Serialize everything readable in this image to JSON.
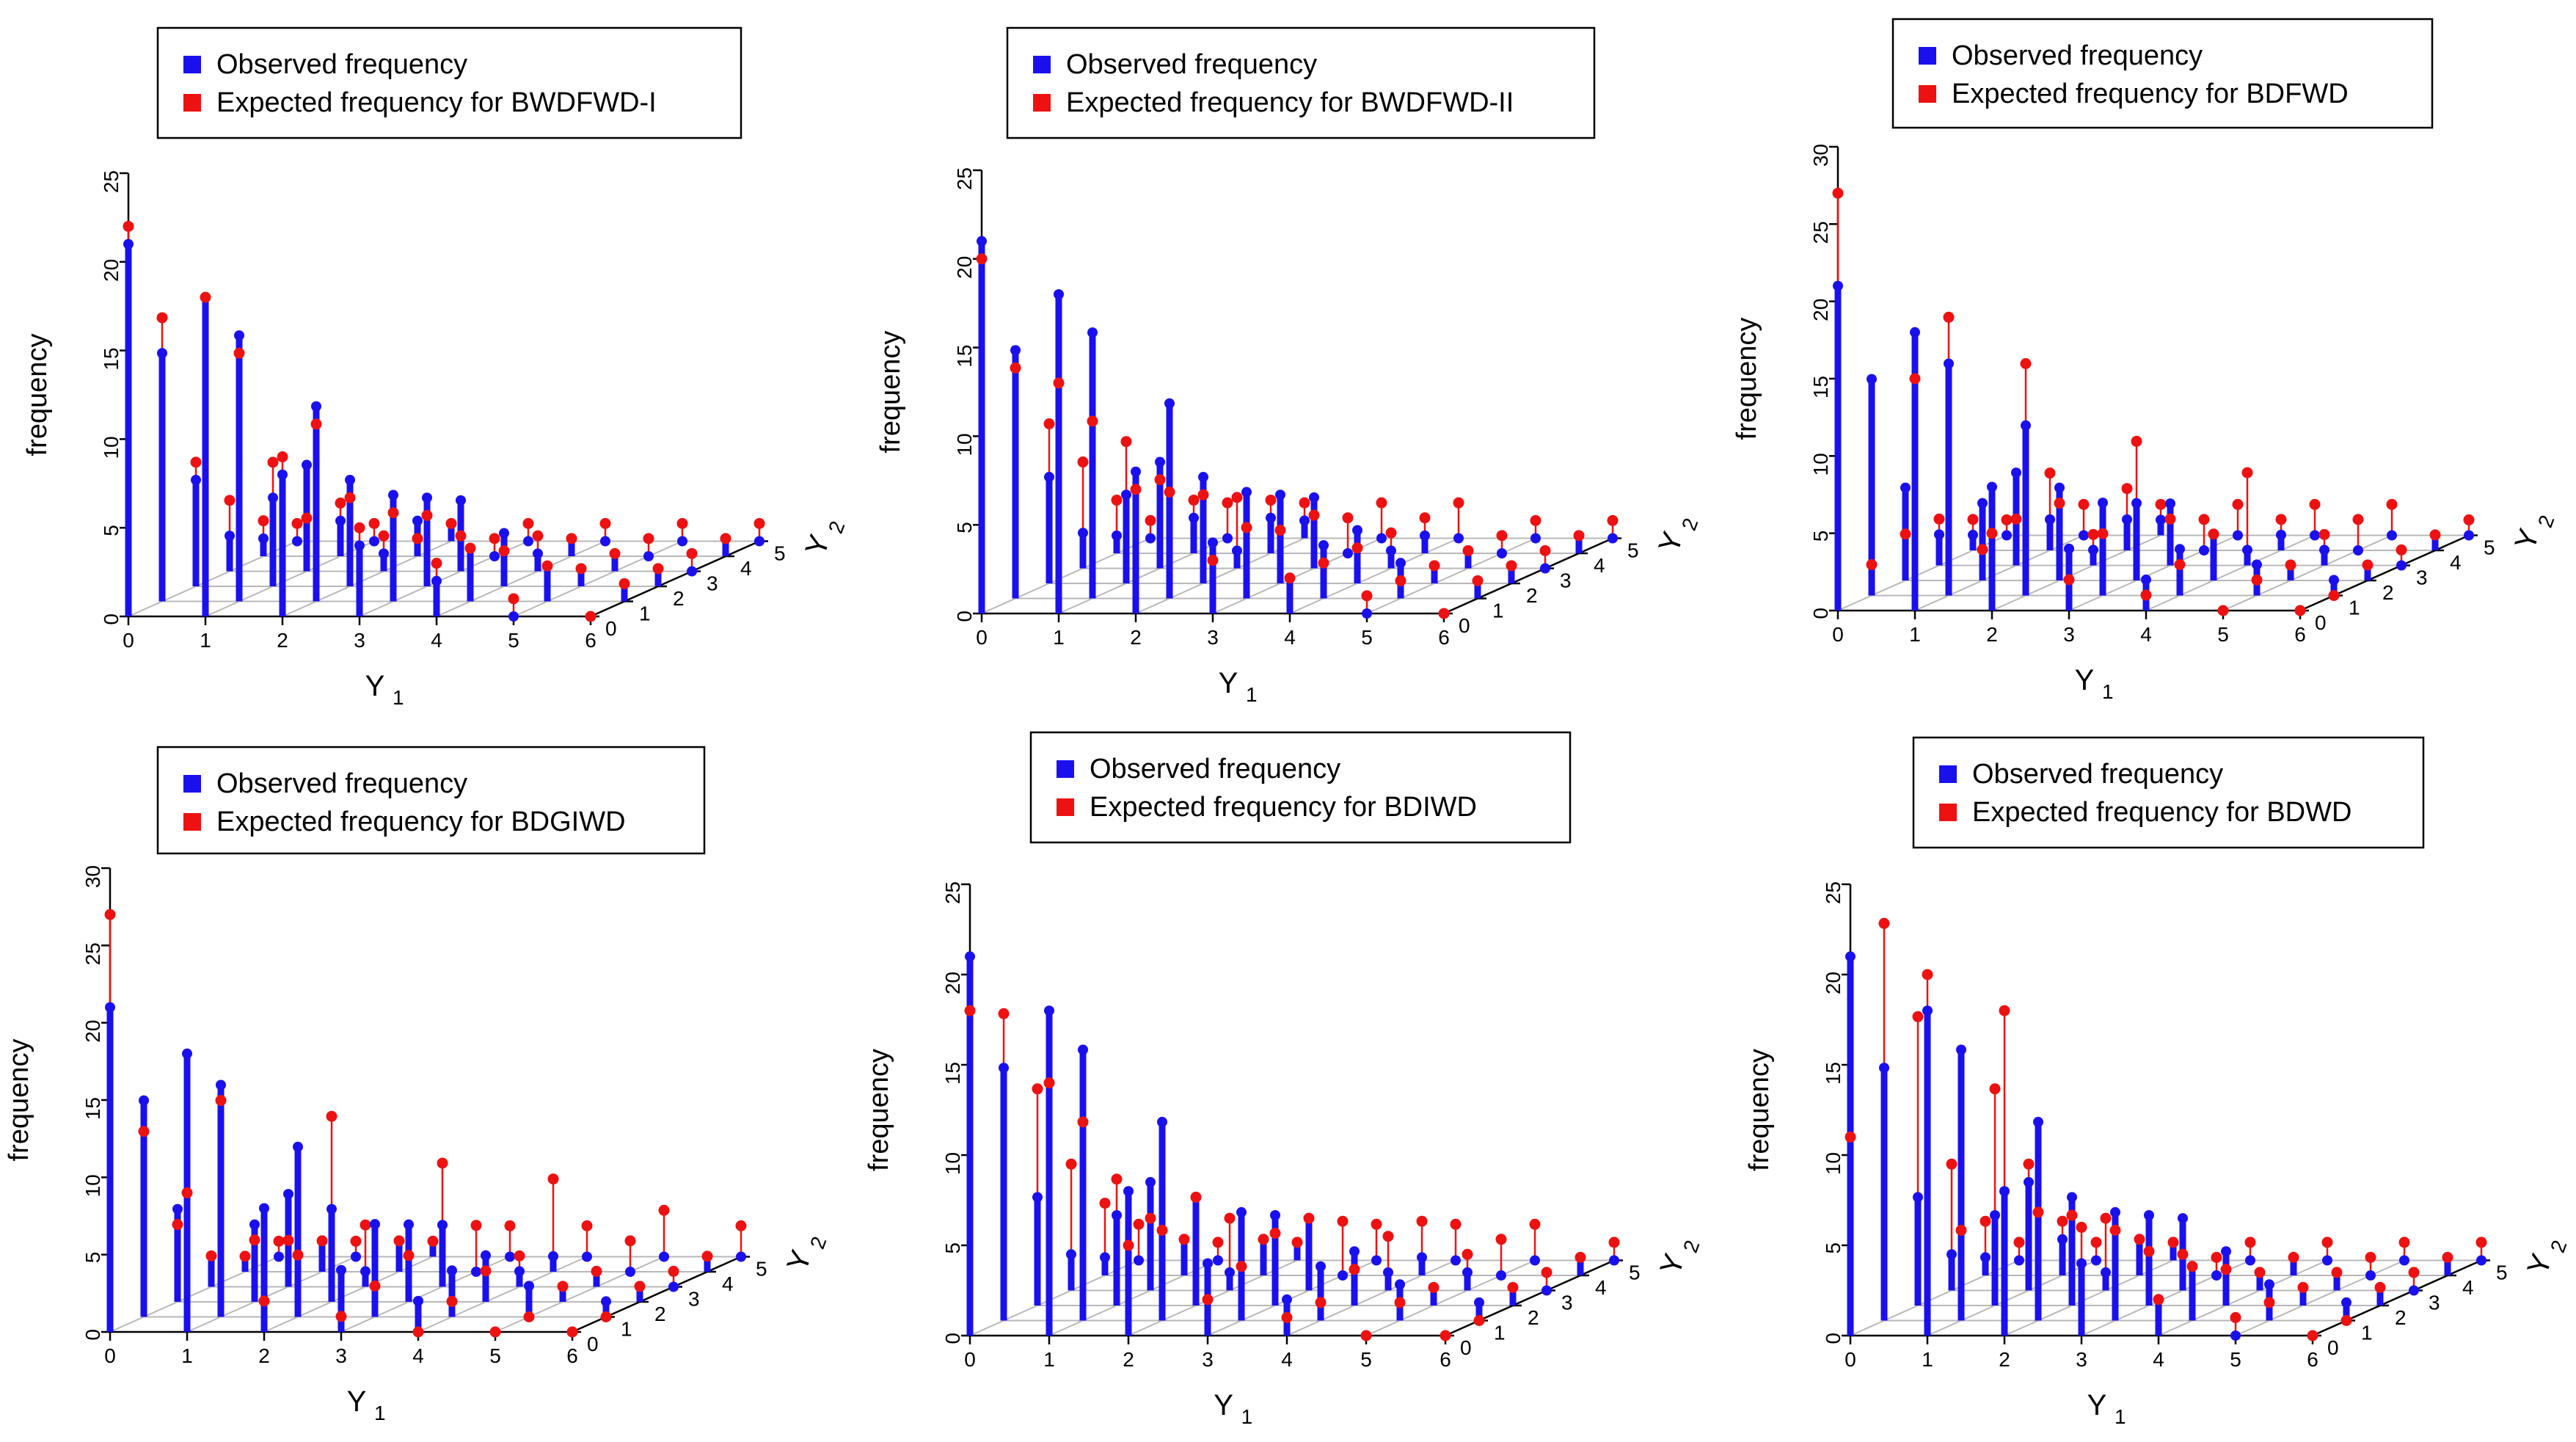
{
  "shared": {
    "legend_observed": "Observed frequency",
    "colors": {
      "observed": "#1a10ee",
      "expected": "#ee1111",
      "grid": "#b8b8b8",
      "axis": "#000000"
    }
  },
  "chart_data": [
    {
      "type": "3d-stem",
      "legend_expected": "Expected frequency for BWDFWD-I",
      "zlabel": "frequency",
      "xlabel": "Y",
      "xlabel_sub": "1",
      "ylabel": "Y",
      "ylabel_sub": "2",
      "zlim": [
        0,
        25
      ],
      "zticks": [
        "0",
        "5",
        "10",
        "15",
        "20",
        "25"
      ],
      "xticks": [
        "0",
        "1",
        "2",
        "3",
        "4",
        "5",
        "6"
      ],
      "yticks": [
        "0",
        "1",
        "2",
        "3",
        "4",
        "5"
      ],
      "observed": [
        [
          21,
          14,
          6,
          2,
          1,
          0
        ],
        [
          18,
          15,
          5,
          6,
          2,
          0
        ],
        [
          8,
          11,
          6,
          1,
          2,
          1
        ],
        [
          4,
          6,
          5,
          4,
          0,
          0
        ],
        [
          2,
          3,
          3,
          1,
          1,
          0
        ],
        [
          0,
          2,
          1,
          1,
          0,
          0
        ],
        [
          0,
          1,
          1,
          0,
          1,
          0
        ]
      ],
      "expected": [
        [
          22,
          16,
          7,
          4,
          2,
          1
        ],
        [
          18,
          14,
          7,
          3,
          3,
          1
        ],
        [
          9,
          10,
          5,
          2,
          1,
          1
        ],
        [
          5,
          5,
          4,
          2,
          1,
          1
        ],
        [
          3,
          3,
          2,
          2,
          1,
          1
        ],
        [
          1,
          2,
          1,
          1,
          1,
          1
        ],
        [
          0,
          1,
          1,
          1,
          1,
          1
        ]
      ]
    },
    {
      "type": "3d-stem",
      "legend_expected": "Expected frequency for BWDFWD-II",
      "zlabel": "frequency",
      "xlabel": "Y",
      "xlabel_sub": "1",
      "ylabel": "Y",
      "ylabel_sub": "2",
      "zlim": [
        0,
        25
      ],
      "zticks": [
        "0",
        "5",
        "10",
        "15",
        "20",
        "25"
      ],
      "xticks": [
        "0",
        "1",
        "2",
        "3",
        "4",
        "5",
        "6"
      ],
      "yticks": [
        "0",
        "1",
        "2",
        "3",
        "4",
        "5"
      ],
      "observed": [
        [
          21,
          14,
          6,
          2,
          1,
          0
        ],
        [
          18,
          15,
          5,
          6,
          2,
          0
        ],
        [
          8,
          11,
          6,
          1,
          2,
          1
        ],
        [
          4,
          6,
          5,
          4,
          0,
          0
        ],
        [
          2,
          3,
          3,
          1,
          1,
          0
        ],
        [
          0,
          2,
          1,
          1,
          0,
          0
        ],
        [
          0,
          1,
          1,
          0,
          1,
          0
        ]
      ],
      "expected": [
        [
          20,
          13,
          9,
          6,
          3,
          1
        ],
        [
          13,
          10,
          8,
          5,
          3,
          2
        ],
        [
          7,
          6,
          5,
          4,
          3,
          2
        ],
        [
          3,
          4,
          3,
          3,
          2,
          2
        ],
        [
          2,
          2,
          2,
          2,
          2,
          2
        ],
        [
          1,
          1,
          1,
          1,
          1,
          1
        ],
        [
          0,
          1,
          1,
          1,
          1,
          1
        ]
      ]
    },
    {
      "type": "3d-stem",
      "legend_expected": "Expected frequency for BDFWD",
      "zlabel": "frequency",
      "xlabel": "Y",
      "xlabel_sub": "1",
      "ylabel": "Y",
      "ylabel_sub": "2",
      "zlim": [
        0,
        30
      ],
      "zticks": [
        "0",
        "5",
        "10",
        "15",
        "20",
        "25",
        "30"
      ],
      "xticks": [
        "0",
        "1",
        "2",
        "3",
        "4",
        "5",
        "6"
      ],
      "yticks": [
        "0",
        "1",
        "2",
        "3",
        "4",
        "5"
      ],
      "observed": [
        [
          21,
          14,
          6,
          2,
          1,
          0
        ],
        [
          18,
          15,
          5,
          6,
          2,
          0
        ],
        [
          8,
          11,
          6,
          1,
          2,
          1
        ],
        [
          4,
          6,
          5,
          4,
          0,
          0
        ],
        [
          2,
          3,
          3,
          1,
          1,
          0
        ],
        [
          0,
          2,
          1,
          1,
          0,
          0
        ],
        [
          0,
          1,
          1,
          0,
          1,
          0
        ]
      ],
      "expected": [
        [
          27,
          2,
          3,
          3,
          2,
          1
        ],
        [
          15,
          18,
          2,
          3,
          5,
          2
        ],
        [
          5,
          15,
          5,
          2,
          4,
          2
        ],
        [
          2,
          4,
          9,
          3,
          2,
          2
        ],
        [
          1,
          2,
          3,
          6,
          2,
          2
        ],
        [
          0,
          1,
          1,
          2,
          2,
          2
        ],
        [
          0,
          0,
          1,
          1,
          1,
          1
        ]
      ]
    },
    {
      "type": "3d-stem",
      "legend_expected": "Expected frequency for BDGIWD",
      "zlabel": "frequency",
      "xlabel": "Y",
      "xlabel_sub": "1",
      "ylabel": "Y",
      "ylabel_sub": "2",
      "zlim": [
        0,
        30
      ],
      "zticks": [
        "0",
        "5",
        "10",
        "15",
        "20",
        "25",
        "30"
      ],
      "xticks": [
        "0",
        "1",
        "2",
        "3",
        "4",
        "5",
        "6"
      ],
      "yticks": [
        "0",
        "1",
        "2",
        "3",
        "4",
        "5"
      ],
      "observed": [
        [
          21,
          14,
          6,
          2,
          1,
          0
        ],
        [
          18,
          15,
          5,
          6,
          2,
          0
        ],
        [
          8,
          11,
          6,
          1,
          2,
          1
        ],
        [
          4,
          6,
          5,
          4,
          0,
          0
        ],
        [
          2,
          3,
          3,
          1,
          1,
          0
        ],
        [
          0,
          2,
          1,
          1,
          0,
          0
        ],
        [
          0,
          1,
          1,
          0,
          1,
          0
        ]
      ],
      "expected": [
        [
          27,
          12,
          5,
          2,
          1,
          1
        ],
        [
          9,
          14,
          4,
          3,
          2,
          1
        ],
        [
          2,
          4,
          12,
          4,
          2,
          1
        ],
        [
          1,
          2,
          3,
          8,
          3,
          2
        ],
        [
          0,
          1,
          2,
          2,
          6,
          2
        ],
        [
          0,
          0,
          1,
          1,
          2,
          3
        ],
        [
          0,
          0,
          1,
          1,
          1,
          2
        ]
      ]
    },
    {
      "type": "3d-stem",
      "legend_expected": "Expected frequency for BDIWD",
      "zlabel": "frequency",
      "xlabel": "Y",
      "xlabel_sub": "1",
      "ylabel": "Y",
      "ylabel_sub": "2",
      "zlim": [
        0,
        25
      ],
      "zticks": [
        "0",
        "5",
        "10",
        "15",
        "20",
        "25"
      ],
      "xticks": [
        "0",
        "1",
        "2",
        "3",
        "4",
        "5",
        "6"
      ],
      "yticks": [
        "0",
        "1",
        "2",
        "3",
        "4",
        "5"
      ],
      "observed": [
        [
          21,
          14,
          6,
          2,
          1,
          0
        ],
        [
          18,
          15,
          5,
          6,
          2,
          0
        ],
        [
          8,
          11,
          6,
          1,
          2,
          1
        ],
        [
          4,
          6,
          5,
          4,
          0,
          0
        ],
        [
          2,
          3,
          3,
          1,
          1,
          0
        ],
        [
          0,
          2,
          1,
          1,
          0,
          0
        ],
        [
          0,
          1,
          1,
          0,
          1,
          0
        ]
      ],
      "expected": [
        [
          18,
          17,
          12,
          7,
          4,
          2
        ],
        [
          14,
          11,
          7,
          4,
          2,
          1
        ],
        [
          5,
          5,
          6,
          4,
          2,
          1
        ],
        [
          2,
          3,
          4,
          4,
          3,
          2
        ],
        [
          1,
          1,
          2,
          3,
          3,
          2
        ],
        [
          0,
          1,
          1,
          2,
          2,
          2
        ],
        [
          0,
          0,
          1,
          1,
          1,
          1
        ]
      ]
    },
    {
      "type": "3d-stem",
      "legend_expected": "Expected frequency for BDWD",
      "zlabel": "frequency",
      "xlabel": "Y",
      "xlabel_sub": "1",
      "ylabel": "Y",
      "ylabel_sub": "2",
      "zlim": [
        0,
        25
      ],
      "zticks": [
        "0",
        "5",
        "10",
        "15",
        "20",
        "25"
      ],
      "xticks": [
        "0",
        "1",
        "2",
        "3",
        "4",
        "5",
        "6"
      ],
      "yticks": [
        "0",
        "1",
        "2",
        "3",
        "4",
        "5"
      ],
      "observed": [
        [
          21,
          14,
          6,
          2,
          1,
          0
        ],
        [
          18,
          15,
          5,
          6,
          2,
          0
        ],
        [
          8,
          11,
          6,
          1,
          2,
          1
        ],
        [
          4,
          6,
          5,
          4,
          0,
          0
        ],
        [
          2,
          3,
          3,
          1,
          1,
          0
        ],
        [
          0,
          2,
          1,
          1,
          0,
          0
        ],
        [
          0,
          1,
          1,
          0,
          1,
          0
        ]
      ],
      "expected": [
        [
          11,
          22,
          16,
          7,
          3,
          1
        ],
        [
          20,
          5,
          12,
          7,
          3,
          1
        ],
        [
          18,
          6,
          5,
          4,
          2,
          1
        ],
        [
          6,
          5,
          3,
          2,
          1,
          1
        ],
        [
          2,
          3,
          2,
          1,
          1,
          1
        ],
        [
          1,
          1,
          1,
          1,
          1,
          1
        ],
        [
          0,
          0,
          1,
          1,
          1,
          1
        ]
      ]
    }
  ]
}
